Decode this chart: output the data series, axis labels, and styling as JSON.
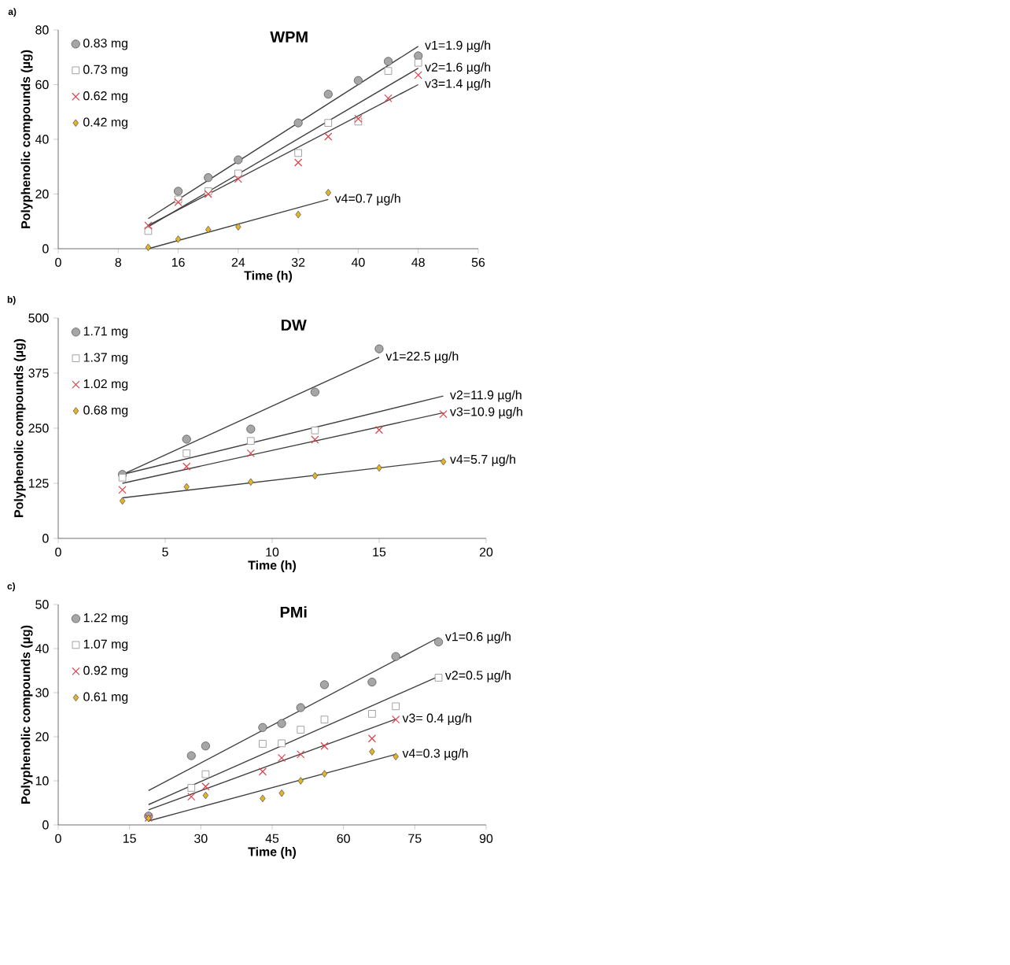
{
  "chart_data": [
    {
      "type": "scatter",
      "title": "WPM",
      "xlabel": "Time (h)",
      "ylabel": "Polyphenolic compounds (µg)",
      "xlim": [
        0,
        56
      ],
      "xticks": [
        0,
        8,
        16,
        24,
        32,
        40,
        48,
        56
      ],
      "ylim": [
        0,
        80
      ],
      "yticks": [
        0,
        20,
        40,
        60,
        80
      ],
      "legend": "top left",
      "series": [
        {
          "name": "0.83 mg",
          "color": "#a6a6a6",
          "marker": "circle",
          "x": [
            16,
            20,
            24,
            32,
            36,
            40,
            44,
            48
          ],
          "values": [
            21,
            26,
            32.5,
            46,
            56.5,
            61.5,
            68.5,
            70.5
          ]
        },
        {
          "name": "0.73 mg",
          "color": "#8c8c8c",
          "marker": "square",
          "x": [
            12,
            16,
            20,
            24,
            32,
            36,
            40,
            44,
            48
          ],
          "values": [
            6.5,
            18,
            21,
            27.5,
            35,
            46,
            46.5,
            65,
            68
          ]
        },
        {
          "name": "0.62 mg",
          "color": "#e0404a",
          "marker": "cross",
          "x": [
            12,
            16,
            20,
            24,
            32,
            36,
            40,
            44,
            48
          ],
          "values": [
            8.5,
            17,
            20,
            25.5,
            31.5,
            41,
            47.5,
            55,
            63.5
          ]
        },
        {
          "name": "0.42 mg",
          "color": "#e6b422",
          "marker": "diamond",
          "x": [
            12,
            16,
            20,
            24,
            32,
            36
          ],
          "values": [
            0.5,
            3.5,
            7,
            8,
            12.5,
            20.5
          ]
        },
        {
          "type": "line",
          "color": "#404040",
          "x": [
            12,
            48
          ],
          "values": [
            11,
            74
          ]
        },
        {
          "type": "line",
          "color": "#404040",
          "x": [
            12,
            48
          ],
          "values": [
            8,
            66
          ]
        },
        {
          "type": "line",
          "color": "#404040",
          "x": [
            12,
            48
          ],
          "values": [
            8.5,
            60
          ]
        },
        {
          "type": "line",
          "color": "#404040",
          "x": [
            12,
            36
          ],
          "values": [
            0,
            18
          ]
        }
      ],
      "annotations": [
        "a)",
        "v1=1.9 µg/h",
        "v2=1.6 µg/h",
        "v3=1.4 µg/h",
        "v4=0.7 µg/h"
      ]
    },
    {
      "type": "scatter",
      "title": "DW",
      "xlabel": "Time (h)",
      "ylabel": "Polyphenolic compounds (µg)",
      "xlim": [
        0,
        20
      ],
      "xticks": [
        0,
        5,
        10,
        15,
        20
      ],
      "ylim": [
        0,
        500
      ],
      "yticks": [
        0,
        125,
        250,
        375,
        500
      ],
      "legend": "top left",
      "series": [
        {
          "name": "1.71 mg",
          "color": "#a6a6a6",
          "marker": "circle",
          "x": [
            3,
            6,
            9,
            12,
            15
          ],
          "values": [
            145,
            225,
            248,
            332,
            430
          ]
        },
        {
          "name": "1.37 mg",
          "color": "#8c8c8c",
          "marker": "square",
          "x": [
            3,
            6,
            9,
            12
          ],
          "values": [
            138,
            193,
            221,
            245
          ]
        },
        {
          "name": "1.02 mg",
          "color": "#e0404a",
          "marker": "cross",
          "x": [
            3,
            6,
            9,
            12,
            15,
            18
          ],
          "values": [
            110,
            163,
            193,
            224,
            246,
            282
          ]
        },
        {
          "name": "0.68 mg",
          "color": "#e6b422",
          "marker": "diamond",
          "x": [
            3,
            6,
            9,
            12,
            15,
            18
          ],
          "values": [
            85,
            117,
            128,
            142,
            160,
            174
          ]
        },
        {
          "type": "line",
          "color": "#404040",
          "x": [
            3,
            15
          ],
          "values": [
            145,
            411
          ]
        },
        {
          "type": "line",
          "color": "#404040",
          "x": [
            3,
            18
          ],
          "values": [
            145,
            323
          ]
        },
        {
          "type": "line",
          "color": "#404040",
          "x": [
            3,
            18
          ],
          "values": [
            125,
            285
          ]
        },
        {
          "type": "line",
          "color": "#404040",
          "x": [
            3,
            18
          ],
          "values": [
            92,
            177
          ]
        }
      ],
      "annotations": [
        "b)",
        "v1=22.5 µg/h",
        "v2=11.9 µg/h",
        "v3=10.9 µg/h",
        "v4=5.7 µg/h"
      ]
    },
    {
      "type": "scatter",
      "title": "PMi",
      "xlabel": "Time (h)",
      "ylabel": "Polyphenolic compounds (µg)",
      "xlim": [
        0,
        90
      ],
      "xticks": [
        0,
        15,
        30,
        45,
        60,
        75,
        90
      ],
      "ylim": [
        0,
        50
      ],
      "yticks": [
        0,
        10,
        20,
        30,
        40,
        50
      ],
      "legend": "top left",
      "series": [
        {
          "name": "1.22 mg",
          "color": "#a6a6a6",
          "marker": "circle",
          "x": [
            19,
            28,
            31,
            43,
            47,
            51,
            56,
            66,
            71,
            80
          ],
          "values": [
            2,
            15.7,
            17.9,
            22.1,
            23,
            26.6,
            31.8,
            32.4,
            38.2,
            41.5
          ]
        },
        {
          "name": "1.07 mg",
          "color": "#8c8c8c",
          "marker": "square",
          "x": [
            28,
            31,
            43,
            47,
            51,
            56,
            66,
            71,
            80
          ],
          "values": [
            8.4,
            11.5,
            18.4,
            18.5,
            21.6,
            23.9,
            25.2,
            26.9,
            33.4
          ]
        },
        {
          "name": "0.92 mg",
          "color": "#e0404a",
          "marker": "cross",
          "x": [
            19,
            28,
            31,
            43,
            47,
            51,
            56,
            66,
            71
          ],
          "values": [
            1.6,
            6.4,
            8.7,
            12.1,
            15.2,
            16,
            17.9,
            19.6,
            23.9
          ]
        },
        {
          "name": "0.61 mg",
          "color": "#e6b422",
          "marker": "diamond",
          "x": [
            19,
            31,
            43,
            47,
            51,
            56,
            66,
            71
          ],
          "values": [
            1.5,
            6.7,
            6,
            7.2,
            10,
            11.6,
            16.6,
            15.5
          ]
        },
        {
          "type": "line",
          "color": "#404040",
          "x": [
            19,
            80
          ],
          "values": [
            7.8,
            42.5
          ]
        },
        {
          "type": "line",
          "color": "#404040",
          "x": [
            19,
            80
          ],
          "values": [
            4.6,
            33.7
          ]
        },
        {
          "type": "line",
          "color": "#404040",
          "x": [
            19,
            71
          ],
          "values": [
            3.4,
            24
          ]
        },
        {
          "type": "line",
          "color": "#404040",
          "x": [
            19,
            71
          ],
          "values": [
            0.9,
            16
          ]
        }
      ],
      "annotations": [
        "c)",
        "v1=0.6 µg/h",
        "v2=0.5 µg/h",
        "v3= 0.4 µg/h",
        "v4=0.3 µg/h"
      ]
    }
  ]
}
